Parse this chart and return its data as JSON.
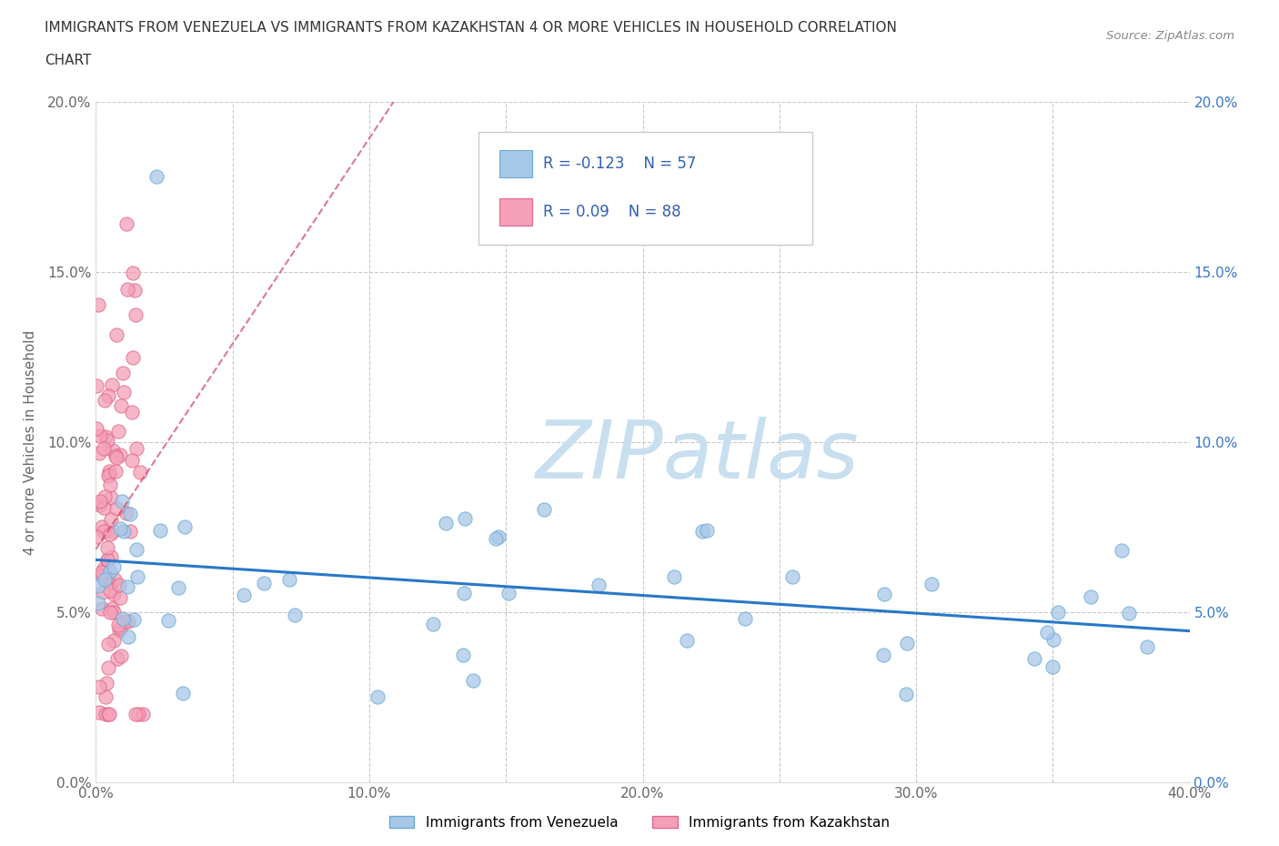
{
  "title_line1": "IMMIGRANTS FROM VENEZUELA VS IMMIGRANTS FROM KAZAKHSTAN 4 OR MORE VEHICLES IN HOUSEHOLD CORRELATION",
  "title_line2": "CHART",
  "source": "Source: ZipAtlas.com",
  "ylabel": "4 or more Vehicles in Household",
  "xlim": [
    0.0,
    0.4
  ],
  "ylim": [
    0.0,
    0.2
  ],
  "xtick_vals": [
    0.0,
    0.05,
    0.1,
    0.15,
    0.2,
    0.25,
    0.3,
    0.35,
    0.4
  ],
  "xticklabels": [
    "0.0%",
    "",
    "10.0%",
    "",
    "20.0%",
    "",
    "30.0%",
    "",
    "40.0%"
  ],
  "ytick_vals": [
    0.0,
    0.05,
    0.1,
    0.15,
    0.2
  ],
  "yticklabels": [
    "0.0%",
    "5.0%",
    "10.0%",
    "15.0%",
    "20.0%"
  ],
  "venezuela_color": "#a8c8e8",
  "venezuela_edge": "#6aaad4",
  "kazakhstan_color": "#f4a0b8",
  "kazakhstan_edge": "#e06888",
  "venezuela_R": -0.123,
  "venezuela_N": 57,
  "kazakhstan_R": 0.09,
  "kazakhstan_N": 88,
  "venezuela_line_color": "#2878c8",
  "kazakhstan_line_color": "#d04060",
  "background_color": "#ffffff",
  "legend_text_color": "#3060b0",
  "watermark_color": "#c8dff0",
  "grid_color": "#c8c8c8",
  "tick_color": "#666666",
  "right_tick_color": "#3878c8",
  "title_color": "#333333",
  "source_color": "#888888"
}
